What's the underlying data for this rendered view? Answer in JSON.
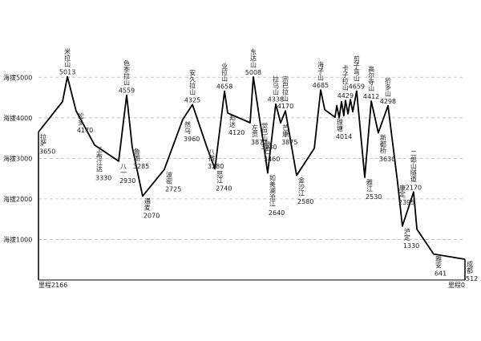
{
  "chart_data": {
    "type": "line",
    "x": [
      2166,
      2044,
      2019,
      1975,
      1881,
      1759,
      1718,
      1690,
      1637,
      1527,
      1433,
      1384,
      1311,
      1270,
      1221,
      1205,
      1091,
      1075,
      1042,
      1026,
      1002,
      961,
      936,
      912,
      855,
      765,
      733,
      712,
      660,
      651,
      639,
      627,
      615,
      607,
      594,
      582,
      570,
      550,
      509,
      476,
      440,
      391,
      342,
      318,
      261,
      244,
      159,
      0
    ],
    "values": [
      3650,
      4400,
      5013,
      4170,
      3330,
      2930,
      4559,
      3285,
      2070,
      2725,
      3960,
      4325,
      3280,
      2740,
      4658,
      4120,
      3877,
      5008,
      3930,
      3460,
      2640,
      4338,
      3875,
      4170,
      2580,
      3250,
      4685,
      4200,
      4014,
      4300,
      4000,
      4400,
      4050,
      4429,
      4100,
      4450,
      4150,
      4659,
      2530,
      4412,
      3630,
      4298,
      2395,
      1330,
      2170,
      1250,
      641,
      512
    ],
    "labels": [
      "拉萨",
      null,
      "米拉山",
      "松多",
      "工布江达",
      "八一",
      "色季拉山",
      "鲁朗",
      "通麦",
      "波密",
      "然乌",
      "安久拉山",
      "八宿",
      "怒江",
      "业拉山",
      "邦达",
      "左贡",
      "东达山",
      "觉巴山",
      "登巴",
      "如美澜沧江",
      "拉乌山",
      "芒康",
      "宗巴拉山",
      "金沙江",
      null,
      "海子山",
      null,
      "理塘",
      null,
      null,
      null,
      null,
      "卡子拉山",
      null,
      null,
      null,
      "剪子弯山",
      "雅江",
      "高尔寺山",
      "新都桥",
      "折多山",
      "康定",
      "泸定",
      "二郎山隧道",
      null,
      "雅安",
      "成都"
    ],
    "color": "#000000",
    "xlim": [
      2166,
      0
    ],
    "xticks": [
      {
        "value": 2166,
        "label": "里程2166"
      },
      {
        "value": 0,
        "label": "里程0"
      }
    ],
    "ylim": [
      0,
      5500
    ],
    "yticks": [
      {
        "value": 1000,
        "label": "海拔1000"
      },
      {
        "value": 2000,
        "label": "海拔2000"
      },
      {
        "value": 3000,
        "label": "海拔3000"
      },
      {
        "value": 4000,
        "label": "海拔4000"
      },
      {
        "value": 5000,
        "label": "海拔5000"
      }
    ],
    "grid": true
  }
}
